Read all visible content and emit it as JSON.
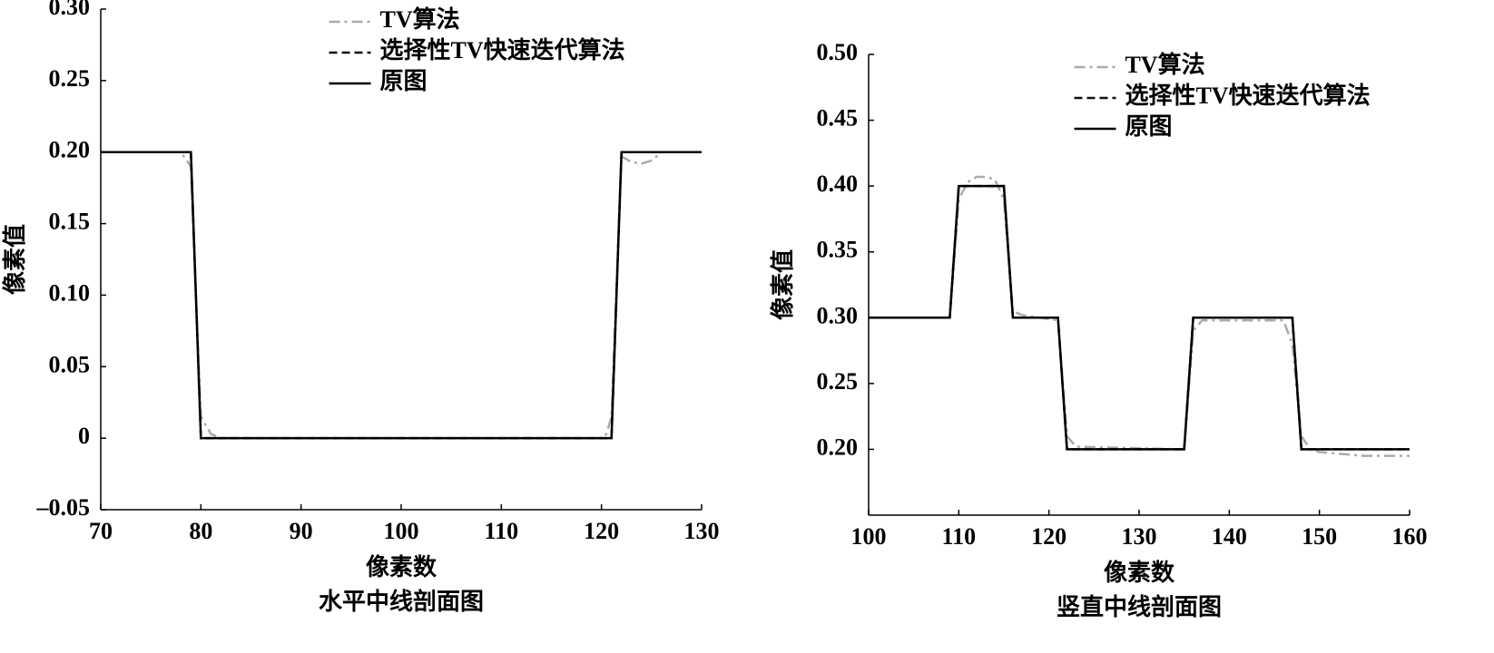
{
  "chart_data": [
    {
      "type": "line",
      "title": "水平中线剖面图",
      "xlabel": "像素数",
      "ylabel": "像素值",
      "xlim": [
        70,
        130
      ],
      "xticks": [
        70,
        80,
        90,
        100,
        110,
        120,
        130
      ],
      "ylim": [
        -0.05,
        0.3
      ],
      "yticks": [
        {
          "value": -0.05,
          "label": "–0.05"
        },
        0,
        0.05,
        {
          "value": 0.1,
          "label": "0.10"
        },
        0.15,
        {
          "value": 0.2,
          "label": "0.20"
        },
        0.25,
        {
          "value": 0.3,
          "label": "0.30"
        }
      ],
      "legend": "upper center",
      "series": [
        {
          "name": "TV算法",
          "color": "#aaaaaa",
          "linestyle": "dashdot",
          "x": [
            70,
            78,
            79,
            79.5,
            80,
            81,
            82,
            120,
            120.5,
            121,
            122,
            123,
            124,
            125,
            126,
            130
          ],
          "values": [
            0.2,
            0.2,
            0.19,
            0.1,
            0.015,
            0.003,
            0,
            0,
            0.003,
            0.015,
            0.197,
            0.193,
            0.192,
            0.194,
            0.2,
            0.2
          ]
        },
        {
          "name": "选择性TV快速迭代算法",
          "color": "#111111",
          "linestyle": "dashed",
          "x": [
            70,
            79,
            80,
            121,
            122,
            130
          ],
          "values": [
            0.2,
            0.2,
            0,
            0,
            0.2,
            0.2
          ]
        },
        {
          "name": "原图",
          "color": "#000000",
          "linestyle": "solid",
          "x": [
            70,
            79,
            80,
            121,
            122,
            130
          ],
          "values": [
            0.2,
            0.2,
            0,
            0,
            0.2,
            0.2
          ]
        }
      ]
    },
    {
      "type": "line",
      "title": "竖直中线剖面图",
      "xlabel": "像素数",
      "ylabel": "像素值",
      "xlim": [
        100,
        160
      ],
      "xticks": [
        100,
        110,
        120,
        130,
        140,
        150,
        160
      ],
      "ylim": [
        0.15,
        0.5
      ],
      "yticks": [
        {
          "value": 0.2,
          "label": "0.20"
        },
        0.25,
        {
          "value": 0.3,
          "label": "0.30"
        },
        0.35,
        {
          "value": 0.4,
          "label": "0.40"
        },
        0.45,
        {
          "value": 0.5,
          "label": "0.50"
        }
      ],
      "legend": "upper center",
      "series": [
        {
          "name": "TV算法",
          "color": "#aaaaaa",
          "linestyle": "dashdot",
          "x": [
            100,
            109,
            110,
            111,
            112,
            113,
            114,
            115,
            116,
            117,
            121,
            122,
            123,
            135,
            136,
            137,
            146,
            147,
            148,
            149,
            150,
            155,
            160
          ],
          "values": [
            0.3,
            0.3,
            0.39,
            0.403,
            0.407,
            0.407,
            0.405,
            0.39,
            0.305,
            0.302,
            0.298,
            0.21,
            0.202,
            0.2,
            0.29,
            0.298,
            0.298,
            0.28,
            0.21,
            0.2,
            0.198,
            0.195,
            0.195
          ]
        },
        {
          "name": "选择性TV快速迭代算法",
          "color": "#111111",
          "linestyle": "dashed",
          "x": [
            100,
            109,
            110,
            115,
            116,
            121,
            122,
            135,
            136,
            147,
            148,
            160
          ],
          "values": [
            0.3,
            0.3,
            0.4,
            0.4,
            0.3,
            0.3,
            0.2,
            0.2,
            0.3,
            0.3,
            0.2,
            0.2
          ]
        },
        {
          "name": "原图",
          "color": "#000000",
          "linestyle": "solid",
          "x": [
            100,
            109,
            110,
            115,
            116,
            121,
            122,
            135,
            136,
            147,
            148,
            160
          ],
          "values": [
            0.3,
            0.3,
            0.4,
            0.4,
            0.3,
            0.3,
            0.2,
            0.2,
            0.3,
            0.3,
            0.2,
            0.2
          ]
        }
      ]
    }
  ]
}
